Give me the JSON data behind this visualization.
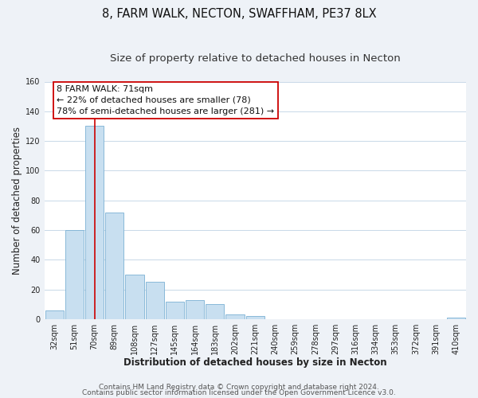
{
  "title": "8, FARM WALK, NECTON, SWAFFHAM, PE37 8LX",
  "subtitle": "Size of property relative to detached houses in Necton",
  "xlabel": "Distribution of detached houses by size in Necton",
  "ylabel": "Number of detached properties",
  "bar_labels": [
    "32sqm",
    "51sqm",
    "70sqm",
    "89sqm",
    "108sqm",
    "127sqm",
    "145sqm",
    "164sqm",
    "183sqm",
    "202sqm",
    "221sqm",
    "240sqm",
    "259sqm",
    "278sqm",
    "297sqm",
    "316sqm",
    "334sqm",
    "353sqm",
    "372sqm",
    "391sqm",
    "410sqm"
  ],
  "bar_values": [
    6,
    60,
    130,
    72,
    30,
    25,
    12,
    13,
    10,
    3,
    2,
    0,
    0,
    0,
    0,
    0,
    0,
    0,
    0,
    0,
    1
  ],
  "bar_color": "#c8dff0",
  "bar_edge_color": "#7ab0d4",
  "highlight_bar_index": 2,
  "highlight_color": "#cc0000",
  "ylim": [
    0,
    160
  ],
  "yticks": [
    0,
    20,
    40,
    60,
    80,
    100,
    120,
    140,
    160
  ],
  "annotation_box_text": [
    "8 FARM WALK: 71sqm",
    "← 22% of detached houses are smaller (78)",
    "78% of semi-detached houses are larger (281) →"
  ],
  "footer_line1": "Contains HM Land Registry data © Crown copyright and database right 2024.",
  "footer_line2": "Contains public sector information licensed under the Open Government Licence v3.0.",
  "bg_color": "#eef2f7",
  "plot_bg_color": "#ffffff",
  "grid_color": "#c8d8e8",
  "title_fontsize": 10.5,
  "subtitle_fontsize": 9.5,
  "axis_label_fontsize": 8.5,
  "tick_fontsize": 7,
  "annotation_fontsize": 8,
  "footer_fontsize": 6.5
}
